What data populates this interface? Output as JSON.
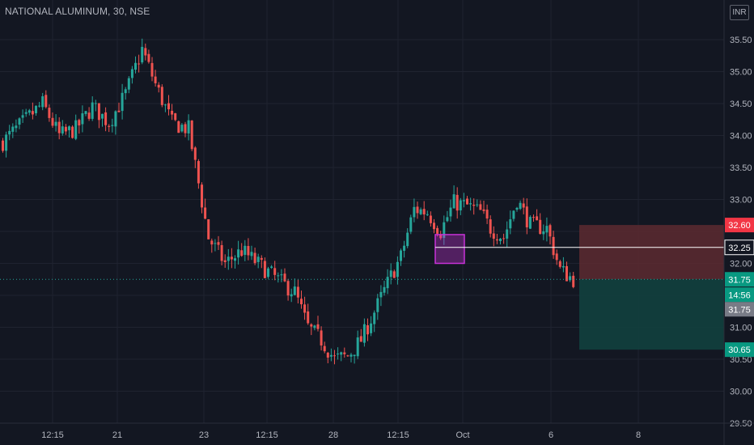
{
  "header": {
    "symbol_title": "NATIONAL ALUMINUM, 30, NSE",
    "currency": "INR"
  },
  "chart_data": {
    "type": "candlestick",
    "symbol": "NATIONAL ALUMINUM",
    "interval": "30",
    "exchange": "NSE",
    "y_ticks": [
      35.5,
      35.0,
      34.5,
      34.0,
      33.5,
      33.0,
      32.0,
      31.0,
      30.5,
      30.0,
      29.5
    ],
    "ylim": [
      29.4,
      35.9
    ],
    "x_ticks": [
      "12:15",
      "21",
      "23",
      "12:15",
      "28",
      "12:15",
      "Oct",
      "6",
      "8"
    ],
    "grid": true,
    "candle_count": 173,
    "close_path": [
      [
        0,
        33.9
      ],
      [
        6,
        34.2
      ],
      [
        12,
        34.5
      ],
      [
        17,
        34.0
      ],
      [
        22,
        34.1
      ],
      [
        27,
        34.45
      ],
      [
        32,
        34.2
      ],
      [
        37,
        34.65
      ],
      [
        42,
        35.35
      ],
      [
        46,
        34.8
      ],
      [
        51,
        34.2
      ],
      [
        56,
        34.1
      ],
      [
        62,
        32.4
      ],
      [
        67,
        32.0
      ],
      [
        72,
        32.2
      ],
      [
        78,
        31.95
      ],
      [
        84,
        31.7
      ],
      [
        88,
        31.55
      ],
      [
        92,
        31.0
      ],
      [
        96,
        30.8
      ],
      [
        100,
        30.5
      ],
      [
        104,
        30.55
      ],
      [
        108,
        30.8
      ],
      [
        113,
        31.35
      ],
      [
        117,
        31.8
      ],
      [
        120,
        32.1
      ],
      [
        124,
        32.85
      ],
      [
        128,
        32.8
      ],
      [
        132,
        32.5
      ],
      [
        136,
        32.95
      ],
      [
        140,
        32.9
      ],
      [
        144,
        32.8
      ],
      [
        147,
        32.55
      ],
      [
        151,
        32.4
      ],
      [
        155,
        33.0
      ],
      [
        159,
        32.6
      ],
      [
        164,
        32.55
      ],
      [
        168,
        31.9
      ],
      [
        172,
        31.75
      ]
    ],
    "price_lines": [
      {
        "label": "32.60",
        "value": 32.6,
        "color": "#f23645"
      },
      {
        "label": "32.25",
        "value": 32.25,
        "color": "#ffffff"
      },
      {
        "label": "31.75",
        "value": 31.75,
        "color": "#089981"
      },
      {
        "label": "30.65",
        "value": 30.65,
        "color": "#089981"
      }
    ],
    "countdown": {
      "label": "14:56",
      "color": "#089981"
    },
    "last_price": {
      "label": "31.75",
      "color": "#787b86"
    },
    "position_tool": {
      "entry": 31.75,
      "stop": 32.6,
      "target": 30.65,
      "stop_zone_color": "#5d2a30",
      "target_zone_color": "#12403e"
    },
    "highlight_box": {
      "color": "#c832d8",
      "price_top": 32.45,
      "price_bottom": 32.0
    },
    "colors": {
      "up": "#26a69a",
      "down": "#ef5350",
      "grid": "#1f2330",
      "axis_text": "#b2b5be",
      "background": "#131722"
    }
  }
}
